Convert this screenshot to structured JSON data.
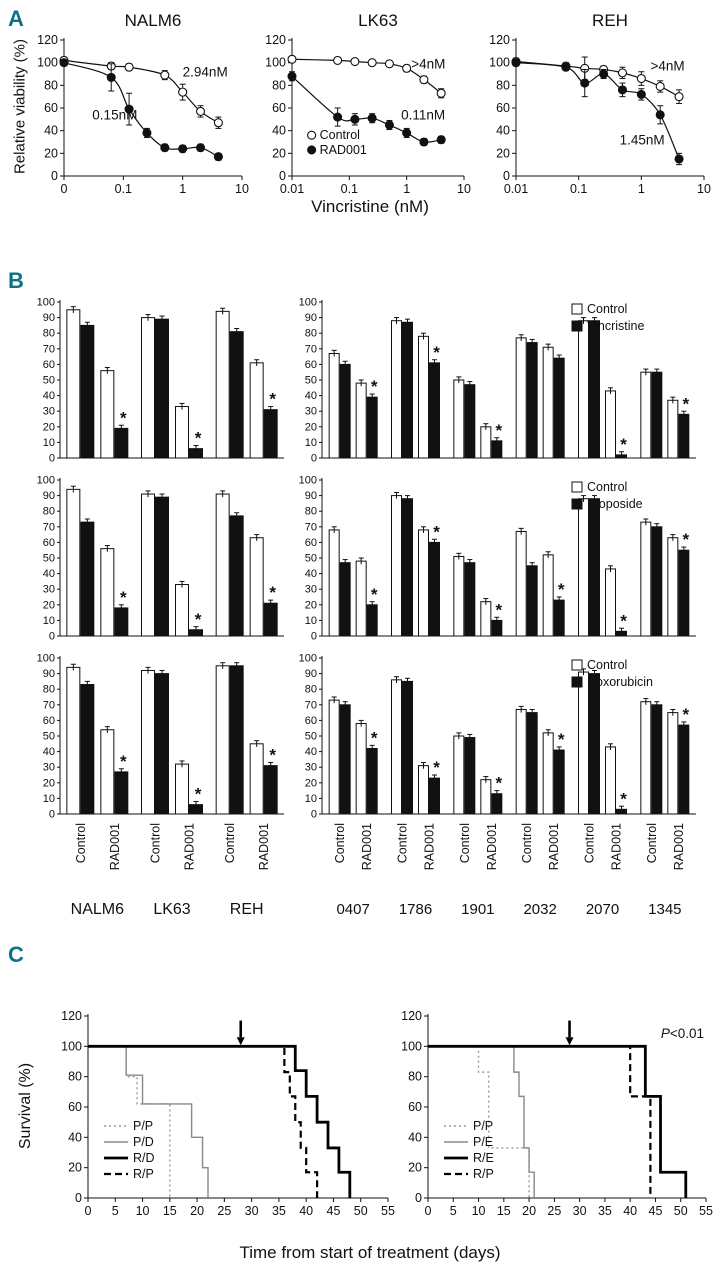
{
  "figure": {
    "panel_a_label": "A",
    "panel_b_label": "B",
    "panel_c_label": "C",
    "panel_label_color": "#0d7285"
  },
  "panel_a": {
    "ylabel": "Relative viability (%)",
    "xlabel": "Vincristine (nM)"
  },
  "panel_c": {
    "ylabel": "Survival (%)",
    "xlabel": "Time from start of treatment (days)"
  },
  "chart_data": [
    {
      "id": "dose_nalm6",
      "type": "line",
      "title": "NALM6",
      "ylim": [
        0,
        120
      ],
      "yticks": [
        0,
        20,
        40,
        60,
        80,
        100,
        120
      ],
      "xtick_labels": [
        "0",
        "0.1",
        "1",
        "10"
      ],
      "xtick_values": [
        0.01,
        0.1,
        1,
        10
      ],
      "series": [
        {
          "name": "Control",
          "marker": "open",
          "ic50": "2.94nM",
          "x": [
            0,
            0.0625,
            0.125,
            0.5,
            1,
            2,
            4
          ],
          "y": [
            102,
            97,
            96,
            89,
            74,
            57,
            47
          ],
          "err": [
            3,
            3,
            3,
            4,
            7,
            5,
            5
          ]
        },
        {
          "name": "RAD001",
          "marker": "filled",
          "ic50": "0.15nM",
          "x": [
            0,
            0.0625,
            0.125,
            0.25,
            0.5,
            1,
            2,
            4
          ],
          "y": [
            100,
            87,
            59,
            38,
            25,
            24,
            25,
            17
          ],
          "err": [
            2,
            12,
            14,
            4,
            3,
            3,
            3,
            3
          ]
        }
      ],
      "annotations": [
        {
          "text": "2.94nM",
          "x": 1.0,
          "y": 88
        },
        {
          "text": "0.15nM",
          "x": 0.03,
          "y": 50
        }
      ]
    },
    {
      "id": "dose_lk63",
      "type": "line",
      "title": "LK63",
      "ylim": [
        0,
        120
      ],
      "yticks": [
        0,
        20,
        40,
        60,
        80,
        100,
        120
      ],
      "xtick_labels": [
        "0.01",
        "0.1",
        "1",
        "10"
      ],
      "xtick_values": [
        0.01,
        0.1,
        1,
        10
      ],
      "series": [
        {
          "name": "Control",
          "marker": "open",
          "ic50": ">4nM",
          "x": [
            0.01,
            0.0625,
            0.125,
            0.25,
            0.5,
            1,
            2,
            4
          ],
          "y": [
            103,
            102,
            101,
            100,
            99,
            95,
            85,
            73
          ],
          "err": [
            2,
            2,
            2,
            2,
            2,
            3,
            3,
            4
          ]
        },
        {
          "name": "RAD001",
          "marker": "filled",
          "ic50": "0.11nM",
          "x": [
            0.01,
            0.0625,
            0.125,
            0.25,
            0.5,
            1,
            2,
            4
          ],
          "y": [
            88,
            52,
            50,
            51,
            45,
            38,
            30,
            32
          ],
          "err": [
            4,
            8,
            5,
            4,
            4,
            4,
            3,
            3
          ]
        }
      ],
      "annotations": [
        {
          "text": ">4nM",
          "x": 1.2,
          "y": 95
        },
        {
          "text": "0.11nM",
          "x": 0.8,
          "y": 50
        }
      ],
      "legend": {
        "x": 0.022,
        "ys": [
          36,
          23
        ],
        "items": [
          "Control",
          "RAD001"
        ]
      }
    },
    {
      "id": "dose_reh",
      "type": "line",
      "title": "REH",
      "ylim": [
        0,
        120
      ],
      "yticks": [
        0,
        20,
        40,
        60,
        80,
        100,
        120
      ],
      "xtick_labels": [
        "0.01",
        "0.1",
        "1",
        "10"
      ],
      "xtick_values": [
        0.01,
        0.1,
        1,
        10
      ],
      "series": [
        {
          "name": "Control",
          "marker": "open",
          "ic50": ">4nM",
          "x": [
            0.01,
            0.0625,
            0.125,
            0.25,
            0.5,
            1,
            2,
            4
          ],
          "y": [
            101,
            97,
            95,
            94,
            91,
            86,
            79,
            70
          ],
          "err": [
            3,
            3,
            10,
            3,
            5,
            6,
            5,
            6
          ]
        },
        {
          "name": "RAD001",
          "marker": "filled",
          "ic50": "1.45nM",
          "x": [
            0.01,
            0.0625,
            0.125,
            0.25,
            0.5,
            1,
            2,
            4
          ],
          "y": [
            100,
            96,
            82,
            90,
            76,
            72,
            54,
            15
          ],
          "err": [
            3,
            3,
            12,
            4,
            6,
            5,
            8,
            5
          ]
        }
      ],
      "annotations": [
        {
          "text": ">4nM",
          "x": 1.4,
          "y": 93
        },
        {
          "text": "1.45nM",
          "x": 0.45,
          "y": 28
        }
      ]
    },
    {
      "id": "bar_vin_lines",
      "type": "bar",
      "ylim": [
        0,
        100
      ],
      "yticks": [
        0,
        10,
        20,
        30,
        40,
        50,
        60,
        70,
        80,
        90,
        100
      ],
      "xtick_labels": [
        "Control",
        "RAD001"
      ],
      "groups": [
        {
          "label": "NALM6",
          "values": [
            95,
            85,
            56,
            19
          ],
          "star_index": 3
        },
        {
          "label": "LK63",
          "values": [
            90,
            89,
            33,
            6
          ],
          "star_index": 3
        },
        {
          "label": "REH",
          "values": [
            94,
            81,
            61,
            31
          ],
          "star_index": 3
        }
      ]
    },
    {
      "id": "bar_vin_xeno",
      "type": "bar",
      "ylim": [
        0,
        100
      ],
      "yticks": [
        0,
        10,
        20,
        30,
        40,
        50,
        60,
        70,
        80,
        90,
        100
      ],
      "xtick_labels": [
        "Control",
        "RAD001"
      ],
      "legend": [
        {
          "label": "Control",
          "fill": "white"
        },
        {
          "label": "Vincristine",
          "fill": "black"
        }
      ],
      "groups": [
        {
          "label": "0407",
          "values": [
            67,
            60,
            48,
            39
          ],
          "star_index": 3
        },
        {
          "label": "1786",
          "values": [
            88,
            87,
            78,
            61
          ],
          "star_index": 3
        },
        {
          "label": "1901",
          "values": [
            50,
            47,
            20,
            11
          ],
          "star_index": 3
        },
        {
          "label": "2032",
          "values": [
            77,
            74,
            71,
            64
          ],
          "star_index": null
        },
        {
          "label": "2070",
          "values": [
            88,
            88,
            43,
            2
          ],
          "star_index": 3
        },
        {
          "label": "1345",
          "values": [
            55,
            55,
            37,
            28
          ],
          "star_index": 3
        }
      ]
    },
    {
      "id": "bar_eto_lines",
      "type": "bar",
      "ylim": [
        0,
        100
      ],
      "yticks": [
        0,
        10,
        20,
        30,
        40,
        50,
        60,
        70,
        80,
        90,
        100
      ],
      "xtick_labels": [
        "Control",
        "RAD001"
      ],
      "groups": [
        {
          "label": "NALM6",
          "values": [
            94,
            73,
            56,
            18
          ],
          "star_index": 3
        },
        {
          "label": "LK63",
          "values": [
            91,
            89,
            33,
            4
          ],
          "star_index": 3
        },
        {
          "label": "REH",
          "values": [
            91,
            77,
            63,
            21
          ],
          "star_index": 3
        }
      ]
    },
    {
      "id": "bar_eto_xeno",
      "type": "bar",
      "ylim": [
        0,
        100
      ],
      "yticks": [
        0,
        10,
        20,
        30,
        40,
        50,
        60,
        70,
        80,
        90,
        100
      ],
      "xtick_labels": [
        "Control",
        "RAD001"
      ],
      "legend": [
        {
          "label": "Control",
          "fill": "white"
        },
        {
          "label": "Etoposide",
          "fill": "black"
        }
      ],
      "groups": [
        {
          "label": "0407",
          "values": [
            68,
            47,
            48,
            20
          ],
          "star_index": 3
        },
        {
          "label": "1786",
          "values": [
            90,
            88,
            68,
            60
          ],
          "star_index": 3
        },
        {
          "label": "1901",
          "values": [
            51,
            47,
            22,
            10
          ],
          "star_index": 3
        },
        {
          "label": "2032",
          "values": [
            67,
            45,
            52,
            23
          ],
          "star_index": 3
        },
        {
          "label": "2070",
          "values": [
            88,
            88,
            43,
            3
          ],
          "star_index": 3
        },
        {
          "label": "1345",
          "values": [
            73,
            70,
            63,
            55
          ],
          "star_index": 3
        }
      ]
    },
    {
      "id": "bar_dox_lines",
      "type": "bar",
      "ylim": [
        0,
        100
      ],
      "yticks": [
        0,
        10,
        20,
        30,
        40,
        50,
        60,
        70,
        80,
        90,
        100
      ],
      "xtick_labels": [
        "Control",
        "RAD001"
      ],
      "groups": [
        {
          "label": "NALM6",
          "values": [
            94,
            83,
            54,
            27
          ],
          "star_index": 3
        },
        {
          "label": "LK63",
          "values": [
            92,
            90,
            32,
            6
          ],
          "star_index": 3
        },
        {
          "label": "REH",
          "values": [
            95,
            95,
            45,
            31
          ],
          "star_index": 3
        }
      ]
    },
    {
      "id": "bar_dox_xeno",
      "type": "bar",
      "ylim": [
        0,
        100
      ],
      "yticks": [
        0,
        10,
        20,
        30,
        40,
        50,
        60,
        70,
        80,
        90,
        100
      ],
      "xtick_labels": [
        "Control",
        "RAD001"
      ],
      "legend": [
        {
          "label": "Control",
          "fill": "white"
        },
        {
          "label": "Doxorubicin",
          "fill": "black"
        }
      ],
      "groups": [
        {
          "label": "0407",
          "values": [
            73,
            70,
            58,
            42
          ],
          "star_index": 3
        },
        {
          "label": "1786",
          "values": [
            86,
            85,
            31,
            23
          ],
          "star_index": 3
        },
        {
          "label": "1901",
          "values": [
            50,
            49,
            22,
            13
          ],
          "star_index": 3
        },
        {
          "label": "2032",
          "values": [
            67,
            65,
            52,
            41
          ],
          "star_index": 3
        },
        {
          "label": "2070",
          "values": [
            91,
            90,
            43,
            3
          ],
          "star_index": 3
        },
        {
          "label": "1345",
          "values": [
            72,
            70,
            65,
            57
          ],
          "star_index": 3
        }
      ]
    },
    {
      "id": "km_left",
      "type": "km",
      "ylim": [
        0,
        120
      ],
      "xlim": [
        0,
        55
      ],
      "yticks": [
        0,
        20,
        40,
        60,
        80,
        100,
        120
      ],
      "xticks": [
        0,
        5,
        10,
        15,
        20,
        25,
        30,
        35,
        40,
        45,
        50,
        55
      ],
      "arrow_x": 28,
      "series": [
        {
          "name": "P/P",
          "style": "dotted",
          "points": [
            [
              0,
              100
            ],
            [
              7,
              100
            ],
            [
              7,
              80
            ],
            [
              9,
              80
            ],
            [
              9,
              62
            ],
            [
              15,
              62
            ],
            [
              15,
              0
            ]
          ]
        },
        {
          "name": "P/D",
          "style": "thin",
          "points": [
            [
              0,
              100
            ],
            [
              7,
              100
            ],
            [
              7,
              81
            ],
            [
              10,
              81
            ],
            [
              10,
              62
            ],
            [
              19,
              62
            ],
            [
              19,
              40
            ],
            [
              21,
              40
            ],
            [
              21,
              20
            ],
            [
              22,
              20
            ],
            [
              22,
              0
            ]
          ]
        },
        {
          "name": "R/D",
          "style": "thick",
          "points": [
            [
              0,
              100
            ],
            [
              38,
              100
            ],
            [
              38,
              84
            ],
            [
              40,
              84
            ],
            [
              40,
              67
            ],
            [
              42,
              67
            ],
            [
              42,
              50
            ],
            [
              44,
              50
            ],
            [
              44,
              33
            ],
            [
              46,
              33
            ],
            [
              46,
              17
            ],
            [
              48,
              17
            ],
            [
              48,
              0
            ]
          ]
        },
        {
          "name": "R/P",
          "style": "dashed",
          "points": [
            [
              0,
              100
            ],
            [
              36,
              100
            ],
            [
              36,
              83
            ],
            [
              37,
              83
            ],
            [
              37,
              67
            ],
            [
              38,
              67
            ],
            [
              38,
              50
            ],
            [
              39,
              50
            ],
            [
              39,
              33
            ],
            [
              40,
              33
            ],
            [
              40,
              17
            ],
            [
              42,
              17
            ],
            [
              42,
              0
            ]
          ]
        }
      ]
    },
    {
      "id": "km_right",
      "type": "km",
      "ylim": [
        0,
        120
      ],
      "xlim": [
        0,
        55
      ],
      "yticks": [
        0,
        20,
        40,
        60,
        80,
        100,
        120
      ],
      "xticks": [
        0,
        5,
        10,
        15,
        20,
        25,
        30,
        35,
        40,
        45,
        50,
        55
      ],
      "arrow_x": 28,
      "pvalue": "P<0.01",
      "series": [
        {
          "name": "P/P",
          "style": "dotted",
          "points": [
            [
              0,
              100
            ],
            [
              10,
              100
            ],
            [
              10,
              83
            ],
            [
              12,
              83
            ],
            [
              12,
              33
            ],
            [
              20,
              33
            ],
            [
              20,
              0
            ]
          ]
        },
        {
          "name": "P/E",
          "style": "thin",
          "points": [
            [
              0,
              100
            ],
            [
              17,
              100
            ],
            [
              17,
              83
            ],
            [
              18,
              83
            ],
            [
              18,
              67
            ],
            [
              19,
              67
            ],
            [
              19,
              33
            ],
            [
              20,
              33
            ],
            [
              20,
              17
            ],
            [
              21,
              17
            ],
            [
              21,
              0
            ]
          ]
        },
        {
          "name": "R/E",
          "style": "thick",
          "points": [
            [
              0,
              100
            ],
            [
              43,
              100
            ],
            [
              43,
              67
            ],
            [
              46,
              67
            ],
            [
              46,
              17
            ],
            [
              51,
              17
            ],
            [
              51,
              0
            ]
          ]
        },
        {
          "name": "R/P",
          "style": "dashed",
          "points": [
            [
              0,
              100
            ],
            [
              40,
              100
            ],
            [
              40,
              67
            ],
            [
              44,
              67
            ],
            [
              44,
              0
            ]
          ]
        }
      ]
    }
  ]
}
